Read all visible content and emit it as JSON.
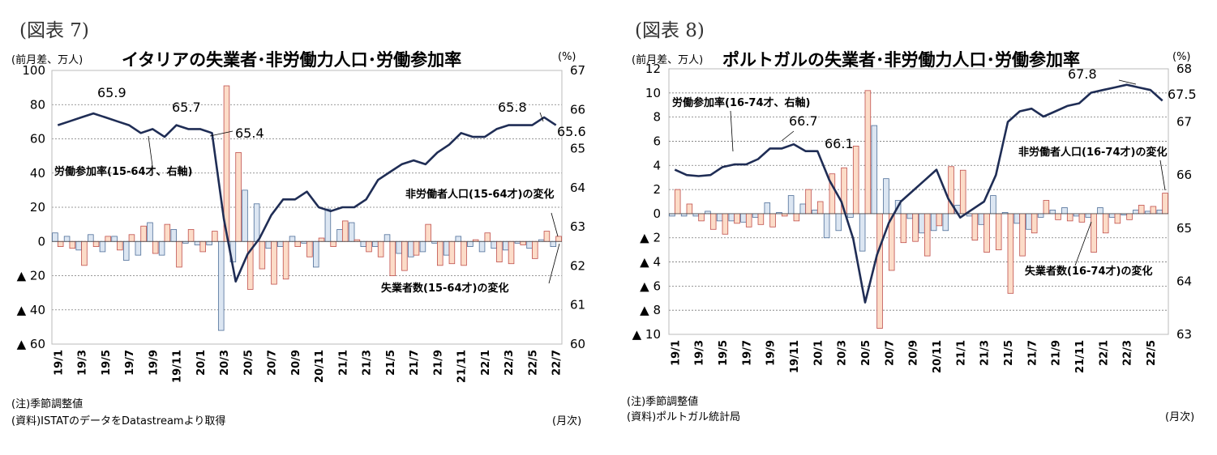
{
  "figures": [
    {
      "label": "(図表 7)",
      "title": "イタリアの失業者･非労働力人口･労働参加率",
      "left_unit": "(前月差、万人)",
      "right_unit": "(%)",
      "note": "(注)季節調整値",
      "source": "(資料)ISTATのデータをDatastreamより取得",
      "x_unit": "(月次)"
    },
    {
      "label": "(図表 8)",
      "title": "ポルトガルの失業者･非労働力人口･労働参加率",
      "left_unit": "(前月差、万人)",
      "right_unit": "(%)",
      "note": "(注)季節調整値",
      "source": "(資料)ポルトガル統計局",
      "x_unit": "(月次)"
    }
  ],
  "chart_data": [
    {
      "type": "bar+line",
      "title": "イタリアの失業者･非労働力人口･労働参加率",
      "months": [
        "19/1",
        "19/2",
        "19/3",
        "19/4",
        "19/5",
        "19/6",
        "19/7",
        "19/8",
        "19/9",
        "19/10",
        "19/11",
        "19/12",
        "20/1",
        "20/2",
        "20/3",
        "20/4",
        "20/5",
        "20/6",
        "20/7",
        "20/8",
        "20/9",
        "20/10",
        "20/11",
        "20/12",
        "21/1",
        "21/2",
        "21/3",
        "21/4",
        "21/5",
        "21/6",
        "21/7",
        "21/8",
        "21/9",
        "21/10",
        "21/11",
        "21/12",
        "22/1",
        "22/2",
        "22/3",
        "22/4",
        "22/5",
        "22/6",
        "22/7"
      ],
      "x_tick_labels": [
        "19/1",
        "19/3",
        "19/5",
        "19/7",
        "19/9",
        "19/11",
        "20/1",
        "20/3",
        "20/5",
        "20/7",
        "20/9",
        "20/11",
        "21/1",
        "21/3",
        "21/5",
        "21/7",
        "21/9",
        "21/11",
        "22/1",
        "22/3",
        "22/5",
        "22/7"
      ],
      "y_left": {
        "range": [
          -60,
          100
        ],
        "ticks": [
          -60,
          -40,
          -20,
          0,
          20,
          40,
          60,
          80,
          100
        ],
        "tick_labels": [
          "▲ 60",
          "▲ 40",
          "▲ 20",
          "0",
          "20",
          "40",
          "60",
          "80",
          "100"
        ]
      },
      "y_right": {
        "range": [
          60,
          67
        ],
        "ticks": [
          60,
          61,
          62,
          63,
          64,
          65,
          66,
          67
        ],
        "tick_labels": [
          "60",
          "61",
          "62",
          "63",
          "64",
          "65",
          "66",
          "67"
        ]
      },
      "series": [
        {
          "name": "失業者数(15-64才)の変化",
          "kind": "bar",
          "color": "#dce6f2",
          "stroke": "#4f6f99",
          "values": [
            5,
            3,
            -5,
            4,
            -6,
            3,
            -11,
            -8,
            11,
            -8,
            7,
            -1,
            -2,
            -2,
            -52,
            -12,
            30,
            22,
            -4,
            -3,
            3,
            -1,
            -15,
            19,
            7,
            11,
            -3,
            -3,
            4,
            -7,
            -9,
            -6,
            -1,
            -8,
            3,
            -3,
            -6,
            -4,
            -5,
            -1,
            -4,
            1,
            -3
          ]
        },
        {
          "name": "非労働者人口(15-64才)の変化",
          "kind": "bar",
          "color": "#fcdcc8",
          "stroke": "#c0504d",
          "values": [
            -3,
            -4,
            -14,
            -3,
            3,
            -5,
            4,
            9,
            -7,
            10,
            -15,
            7,
            -6,
            6,
            91,
            52,
            -28,
            -16,
            -25,
            -22,
            -3,
            -9,
            2,
            -3,
            12,
            1,
            -6,
            -9,
            -20,
            -17,
            -8,
            10,
            -14,
            -13,
            -14,
            1,
            5,
            -12,
            -13,
            -2,
            -10,
            6,
            3
          ]
        },
        {
          "name": "労働参加率(15-64才、右軸)",
          "kind": "line",
          "axis": "right",
          "color": "#1f2d55",
          "values": [
            65.6,
            65.7,
            65.8,
            65.9,
            65.8,
            65.7,
            65.6,
            65.4,
            65.5,
            65.3,
            65.6,
            65.5,
            65.5,
            65.4,
            63.2,
            61.6,
            62.3,
            62.7,
            63.3,
            63.7,
            63.7,
            63.9,
            63.5,
            63.4,
            63.5,
            63.5,
            63.7,
            64.2,
            64.4,
            64.6,
            64.7,
            64.6,
            64.9,
            65.1,
            65.4,
            65.3,
            65.3,
            65.5,
            65.6,
            65.6,
            65.6,
            65.8,
            65.6
          ]
        }
      ],
      "annotations": [
        "65.9",
        "65.7",
        "65.4",
        "65.8",
        "65.6",
        "労働参加率(15-64才、右軸)",
        "非労働者人口(15-64才)の変化",
        "失業者数(15-64才)の変化"
      ]
    },
    {
      "type": "bar+line",
      "title": "ポルトガルの失業者･非労働力人口･労働参加率",
      "months": [
        "19/1",
        "19/2",
        "19/3",
        "19/4",
        "19/5",
        "19/6",
        "19/7",
        "19/8",
        "19/9",
        "19/10",
        "19/11",
        "19/12",
        "20/1",
        "20/2",
        "20/3",
        "20/4",
        "20/5",
        "20/6",
        "20/7",
        "20/8",
        "20/9",
        "20/10",
        "20/11",
        "20/12",
        "21/1",
        "21/2",
        "21/3",
        "21/4",
        "21/5",
        "21/6",
        "21/7",
        "21/8",
        "21/9",
        "21/10",
        "21/11",
        "21/12",
        "22/1",
        "22/2",
        "22/3",
        "22/4",
        "22/5",
        "22/6"
      ],
      "x_tick_labels": [
        "19/1",
        "19/3",
        "19/5",
        "19/7",
        "19/9",
        "19/11",
        "20/1",
        "20/3",
        "20/5",
        "20/7",
        "20/9",
        "20/11",
        "21/1",
        "21/3",
        "21/5",
        "21/7",
        "21/9",
        "21/11",
        "22/1",
        "22/3",
        "22/5"
      ],
      "y_left": {
        "range": [
          -10,
          12
        ],
        "ticks": [
          -10,
          -8,
          -6,
          -4,
          -2,
          0,
          2,
          4,
          6,
          8,
          10,
          12
        ],
        "tick_labels": [
          "▲ 10",
          "▲ 8",
          "▲ 6",
          "▲ 4",
          "▲ 2",
          "0",
          "2",
          "4",
          "6",
          "8",
          "10",
          "12"
        ]
      },
      "y_right": {
        "range": [
          63,
          68
        ],
        "ticks": [
          63,
          64,
          65,
          66,
          67,
          68
        ],
        "tick_labels": [
          "63",
          "64",
          "65",
          "66",
          "67",
          "68"
        ]
      },
      "series": [
        {
          "name": "失業者数(16-74才)の変化",
          "kind": "bar",
          "color": "#dce6f2",
          "stroke": "#4f6f99",
          "values": [
            -0.2,
            -0.2,
            -0.2,
            0.2,
            -0.6,
            -0.6,
            -0.7,
            -0.3,
            0.9,
            0.1,
            1.5,
            0.8,
            0.3,
            -2.0,
            -1.4,
            -0.3,
            -3.1,
            7.3,
            2.9,
            1.1,
            -0.4,
            -1.6,
            -1.4,
            -1.4,
            0.7,
            -0.2,
            -0.9,
            1.5,
            0.1,
            -0.8,
            -1.3,
            -0.3,
            0.3,
            0.5,
            -0.2,
            -0.3,
            0.5,
            -0.3,
            -0.1,
            0.3,
            0.2,
            0.3
          ]
        },
        {
          "name": "非労働者人口(16-74才)の変化",
          "kind": "bar",
          "color": "#fcdcc8",
          "stroke": "#c0504d",
          "values": [
            2.0,
            0.8,
            -0.6,
            -1.3,
            -1.7,
            -0.8,
            -1.1,
            -0.9,
            -1.1,
            -0.2,
            -0.6,
            2.0,
            1.0,
            3.3,
            3.8,
            5.6,
            10.2,
            -9.5,
            -4.7,
            -2.4,
            -2.3,
            -3.5,
            -1.0,
            3.9,
            3.6,
            -2.2,
            -3.2,
            -3.0,
            -6.6,
            -3.5,
            -1.6,
            1.1,
            -0.5,
            -0.6,
            -0.7,
            -3.2,
            -1.6,
            -0.8,
            -0.5,
            0.7,
            0.6,
            1.7
          ]
        },
        {
          "name": "労働参加率(16-74才、右軸)",
          "kind": "line",
          "axis": "right",
          "color": "#1f2d55",
          "values": [
            66.1,
            66.0,
            65.98,
            66.0,
            66.15,
            66.2,
            66.2,
            66.3,
            66.5,
            66.5,
            66.58,
            66.45,
            66.45,
            65.9,
            65.5,
            64.8,
            63.6,
            64.5,
            65.1,
            65.5,
            65.7,
            65.9,
            66.1,
            65.55,
            65.2,
            65.35,
            65.5,
            66.0,
            67.0,
            67.2,
            67.25,
            67.1,
            67.2,
            67.3,
            67.35,
            67.55,
            67.6,
            67.65,
            67.7,
            67.65,
            67.6,
            67.4
          ]
        }
      ],
      "annotations": [
        "67.8",
        "66.7",
        "66.1",
        "67.5",
        "労働参加率(16-74才、右軸)",
        "非労働者人口(16-74才)の変化",
        "失業者数(16-74才)の変化"
      ]
    }
  ]
}
